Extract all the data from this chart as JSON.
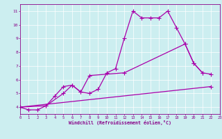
{
  "background_color": "#cceef0",
  "line_color": "#aa00aa",
  "grid_color": "#ffffff",
  "xlabel": "Windchill (Refroidissement éolien,°C)",
  "xlim": [
    0,
    23
  ],
  "ylim": [
    3.5,
    11.5
  ],
  "yticks": [
    4,
    5,
    6,
    7,
    8,
    9,
    10,
    11
  ],
  "xticks": [
    0,
    1,
    2,
    3,
    4,
    5,
    6,
    7,
    8,
    9,
    10,
    11,
    12,
    13,
    14,
    15,
    16,
    17,
    18,
    19,
    20,
    21,
    22,
    23
  ],
  "line1_x": [
    0,
    1,
    2,
    3,
    4,
    5,
    6,
    7,
    8,
    9,
    10,
    11,
    12,
    13,
    14,
    15,
    16,
    17,
    18,
    19,
    20,
    21
  ],
  "line1_y": [
    4.0,
    3.8,
    3.8,
    4.1,
    4.8,
    5.5,
    5.6,
    5.1,
    5.0,
    5.3,
    6.5,
    6.8,
    9.0,
    11.0,
    10.5,
    10.5,
    10.5,
    11.0,
    9.8,
    8.6,
    7.2,
    6.5
  ],
  "line2_x": [
    0,
    3,
    5,
    6,
    7,
    8,
    12,
    19,
    20,
    21,
    22
  ],
  "line2_y": [
    4.0,
    4.1,
    5.0,
    5.6,
    5.1,
    6.3,
    6.5,
    8.6,
    7.2,
    6.5,
    6.4
  ],
  "line3_x": [
    0,
    22
  ],
  "line3_y": [
    4.0,
    5.5
  ]
}
